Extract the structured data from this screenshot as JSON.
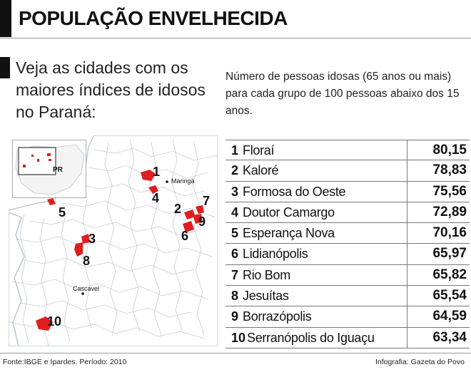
{
  "header": {
    "title": "POPULAÇÃO ENVELHECIDA"
  },
  "intro": {
    "text": "Veja as cidades com os maiores índices de idosos no Paraná:"
  },
  "subtitle": "Número de pessoas idosas (65 anos ou mais) para cada grupo de 100 pessoas abaixo dos 15 anos.",
  "map": {
    "inset_label": "PR",
    "city_labels": [
      "Maringá",
      "Cascavel"
    ],
    "markers": [
      "1",
      "2",
      "3",
      "4",
      "5",
      "6",
      "7",
      "8",
      "9",
      "10"
    ],
    "highlight_color": "#e01e1e"
  },
  "ranking": [
    {
      "rank": "1",
      "city": "Floraí",
      "value": "80,15"
    },
    {
      "rank": "2",
      "city": "Kaloré",
      "value": "78,83"
    },
    {
      "rank": "3",
      "city": "Formosa do Oeste",
      "value": "75,56"
    },
    {
      "rank": "4",
      "city": "Doutor Camargo",
      "value": "72,89"
    },
    {
      "rank": "5",
      "city": "Esperança Nova",
      "value": "70,16"
    },
    {
      "rank": "6",
      "city": "Lidianópolis",
      "value": "65,97"
    },
    {
      "rank": "7",
      "city": "Rio Bom",
      "value": "65,82"
    },
    {
      "rank": "8",
      "city": "Jesuítas",
      "value": "65,54"
    },
    {
      "rank": "9",
      "city": "Borrazópolis",
      "value": "64,59"
    },
    {
      "rank": "10",
      "city": "Serranópolis do Iguaçu",
      "value": "63,34"
    }
  ],
  "footer": {
    "source": "Fonte:IBGE e Ipardes. Período: 2010",
    "credit": "Infografia: Gazeta do Povo"
  }
}
